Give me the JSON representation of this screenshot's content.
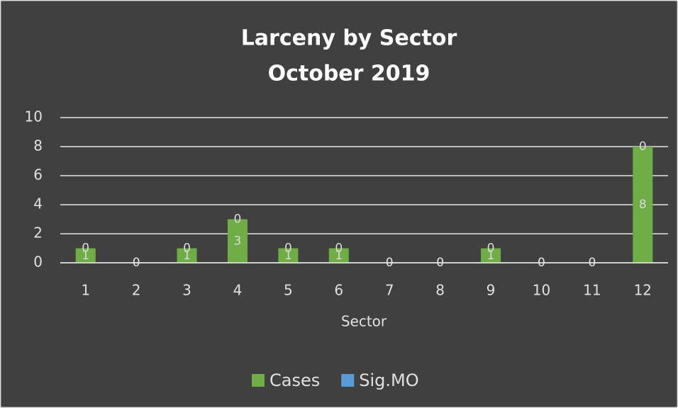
{
  "chart_data": {
    "type": "stacked_bar",
    "title": "Larceny by Sector",
    "subtitle": "October 2019",
    "x_label": "Sector",
    "categories": [
      "1",
      "2",
      "3",
      "4",
      "5",
      "6",
      "7",
      "8",
      "9",
      "10",
      "11",
      "12"
    ],
    "series": [
      {
        "name": "Cases",
        "color": "#70ad47",
        "values": [
          1,
          0,
          1,
          3,
          1,
          1,
          0,
          0,
          1,
          0,
          0,
          8
        ]
      },
      {
        "name": "Sig.MO",
        "color": "#5b9bd5",
        "values": [
          0,
          0,
          0,
          0,
          0,
          0,
          0,
          0,
          0,
          0,
          0,
          0
        ]
      }
    ],
    "ylim": [
      0,
      10
    ],
    "yticks": [
      0,
      2,
      4,
      6,
      8,
      10
    ],
    "grid": true,
    "legend": "bottom"
  }
}
